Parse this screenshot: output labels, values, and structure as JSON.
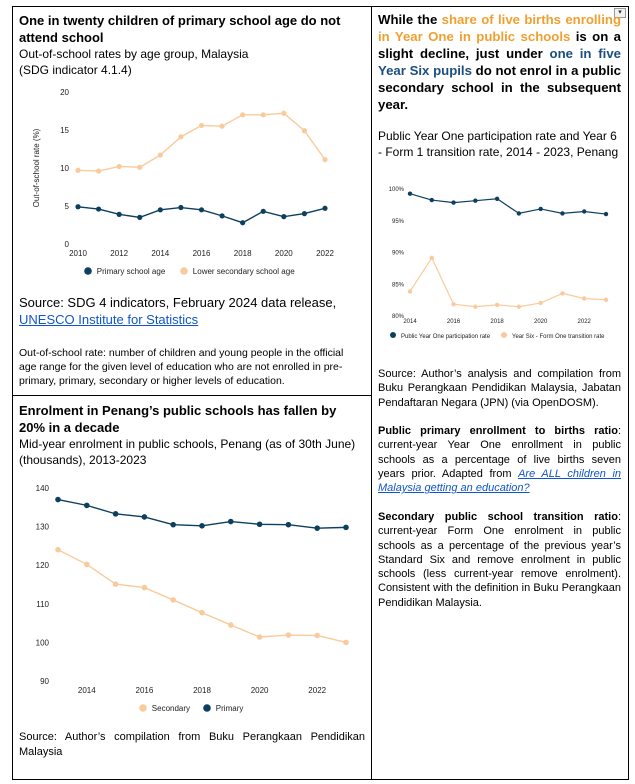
{
  "left_top": {
    "title": "One in twenty children of primary school age do not attend school",
    "subtitle_1": "Out-of-school rates by age group, Malaysia",
    "subtitle_2": "(SDG indicator 4.1.4)",
    "source_prefix": "Source: SDG 4 indicators, February 2024 data release,",
    "source_link": "UNESCO Institute for Statistics",
    "note": "Out-of-school rate: number of children and young people in the official age range for the given level of education who are not enrolled in pre-primary, primary, secondary or higher levels of education."
  },
  "left_bottom": {
    "title": "Enrolment in Penang’s public schools has fallen by 20% in a decade",
    "subtitle": "Mid-year enrolment in public schools, Penang (as of 30th June) (thousands), 2013-2023",
    "source": "Source: Author’s compilation from Buku Perangkaan Pendidikan Malaysia"
  },
  "right": {
    "headline": {
      "p1": "While the ",
      "p2": "share of live births enrolling in Year One in public schools",
      "p3": " is on a slight decline, just under ",
      "p4": "one in five Year Six pupils",
      "p5": " do not enrol in a public secondary school in the subsequent year."
    },
    "chart_title": "Public Year One participation rate and Year 6 - Form 1 transition rate, 2014 - 2023, Penang",
    "source": {
      "a": "Source: Author’s analysis and compilation from Buku Perangkaan Pendidikan Malaysia",
      "b": ", Jabatan Pendaftaran Negara (JPN) (via OpenDOSM)."
    },
    "def1": {
      "term": "Public primary enrollment to births ratio",
      "body": ": current-year Year One enrollment in public schools as a percentage of live births seven years prior. Adapted from ",
      "link": "Are ALL children in Malaysia getting an education?"
    },
    "def2": {
      "term": "Secondary public school transition ratio",
      "body": ": current-year Form One enrolment in public schools as a percentage of the previous year’s Standard Six and remove enrolment in public schools (less current-year remove enrolment). Consistent with the definition in Buku Perangkaan Pendidikan Malaysia."
    },
    "dropdown_glyph": "▾"
  },
  "chart_data": [
    {
      "type": "line",
      "ylabel": "Out-of-school rate (%)",
      "xlim": [
        2010,
        2022
      ],
      "ylim": [
        0,
        20
      ],
      "xticks": [
        2010,
        2012,
        2014,
        2016,
        2018,
        2020,
        2022
      ],
      "yticks": [
        0,
        5,
        10,
        15,
        20
      ],
      "x": [
        2010,
        2011,
        2012,
        2013,
        2014,
        2015,
        2016,
        2017,
        2018,
        2019,
        2020,
        2021,
        2022
      ],
      "series": [
        {
          "name": "Primary school age",
          "color": "#0d3f5f",
          "values": [
            4.9,
            4.6,
            3.9,
            3.5,
            4.5,
            4.8,
            4.5,
            3.7,
            2.8,
            4.3,
            3.6,
            4.0,
            4.7
          ]
        },
        {
          "name": "Lower secondary school age",
          "color": "#f9cb9c",
          "values": [
            9.7,
            9.6,
            10.2,
            10.1,
            11.7,
            14.1,
            15.6,
            15.5,
            17.0,
            17.0,
            17.2,
            14.9,
            11.1
          ]
        }
      ],
      "legend": "bottom",
      "grid": false
    },
    {
      "type": "line",
      "xlim": [
        2013,
        2023
      ],
      "ylim": [
        90,
        140
      ],
      "xticks": [
        2014,
        2016,
        2018,
        2020,
        2022
      ],
      "yticks": [
        90,
        100,
        110,
        120,
        130,
        140
      ],
      "x": [
        2013,
        2014,
        2015,
        2016,
        2017,
        2018,
        2019,
        2020,
        2021,
        2022,
        2023
      ],
      "series": [
        {
          "name": "Secondary",
          "color": "#f9cb9c",
          "values": [
            124.0,
            120.2,
            115.1,
            114.2,
            111.0,
            107.7,
            104.5,
            101.4,
            101.9,
            101.8,
            100.0
          ]
        },
        {
          "name": "Primary",
          "color": "#0d3f5f",
          "values": [
            137.0,
            135.5,
            133.3,
            132.5,
            130.5,
            130.2,
            131.3,
            130.6,
            130.5,
            129.6,
            129.8
          ]
        }
      ],
      "legend": "bottom",
      "grid": false
    },
    {
      "type": "line",
      "xlim": [
        2014,
        2023
      ],
      "ylim": [
        80,
        100
      ],
      "xticks": [
        2014,
        2016,
        2018,
        2020,
        2022
      ],
      "yticks": [
        "80%",
        "85%",
        "90%",
        "95%",
        "100%"
      ],
      "x": [
        2014,
        2015,
        2016,
        2017,
        2018,
        2019,
        2020,
        2021,
        2022,
        2023
      ],
      "series": [
        {
          "name": "Public Year One participation rate",
          "color": "#0d3f5f",
          "values": [
            99.1,
            98.1,
            97.7,
            98.0,
            98.3,
            96.0,
            96.7,
            96.0,
            96.3,
            95.9
          ]
        },
        {
          "name": "Year Six - Form One transition rate",
          "color": "#f9cb9c",
          "values": [
            83.7,
            89.0,
            81.7,
            81.3,
            81.6,
            81.3,
            81.9,
            83.4,
            82.6,
            82.4
          ]
        }
      ],
      "legend": "bottom",
      "grid": false
    }
  ]
}
